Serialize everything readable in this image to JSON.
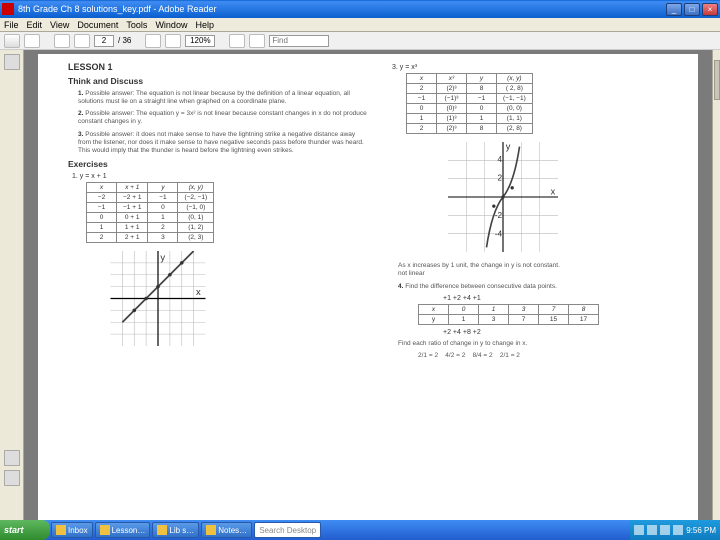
{
  "window": {
    "title": "8th Grade   Ch 8   solutions_key.pdf - Adobe Reader",
    "min": "_",
    "max": "□",
    "close": "×"
  },
  "menu": [
    "File",
    "Edit",
    "View",
    "Document",
    "Tools",
    "Window",
    "Help"
  ],
  "toolbar": {
    "page_current": "2",
    "page_total": "/ 36",
    "zoom": "120%",
    "find_placeholder": "Find"
  },
  "lesson": {
    "title": "LESSON 1",
    "think_discuss": "Think and Discuss",
    "td1": "Possible answer: The equation is not linear because by the definition of a linear equation, all solutions must lie on a straight line when graphed on a coordinate plane.",
    "td2": "Possible answer: The equation y = 3x² is not linear because constant changes in x do not produce constant changes in y.",
    "td3": "Possible answer: it does not make sense to have the lightning strike a negative distance away from the listener, nor does it make sense to have negative seconds pass before thunder was heard. This would imply that the thunder is heard before the lightning even strikes.",
    "exercises": "Exercises",
    "ex1_eq": "1.  y = x + 1",
    "table1": {
      "headers": [
        "x",
        "x + 1",
        "y",
        "(x, y)"
      ],
      "rows": [
        [
          "−2",
          "−2 + 1",
          "−1",
          "(−2, −1)"
        ],
        [
          "−1",
          "−1 + 1",
          "0",
          "(−1, 0)"
        ],
        [
          "0",
          "0 + 1",
          "1",
          "(0, 1)"
        ],
        [
          "1",
          "1 + 1",
          "2",
          "(1, 2)"
        ],
        [
          "2",
          "2 + 1",
          "3",
          "(2, 3)"
        ]
      ]
    },
    "ex3_eq": "3.  y = x³",
    "table3": {
      "headers": [
        "x",
        "x³",
        "y",
        "(x, y)"
      ],
      "rows": [
        [
          "2",
          "(2)³",
          "8",
          "( 2,  8)"
        ],
        [
          "−1",
          "(−1)³",
          "−1",
          "(−1, −1)"
        ],
        [
          "0",
          "(0)³",
          "0",
          "(0, 0)"
        ],
        [
          "1",
          "(1)³",
          "1",
          "(1, 1)"
        ],
        [
          "2",
          "(2)³",
          "8",
          "(2, 8)"
        ]
      ]
    },
    "note3": "As x increases by 1 unit, the change in y is not constant.\nnot linear",
    "ex4": "Find the difference between consecutive data points.",
    "table4_top": [
      "+1",
      "+2",
      "+4",
      "+1"
    ],
    "table4": {
      "headers": [
        "x",
        "0",
        "1",
        "3",
        "7",
        "8"
      ],
      "rows": [
        [
          "y",
          "1",
          "3",
          "7",
          "15",
          "17"
        ]
      ]
    },
    "table4_bot": [
      "+2",
      "+4",
      "+8",
      "+2"
    ],
    "ex4_ratio": "Find each ratio of change in y to change in x.",
    "ratios": "2/1 = 2    4/2 = 2    8/4 = 2    2/1 = 2",
    "graph1": {
      "type": "line",
      "xlim": [
        -3,
        3
      ],
      "ylim": [
        -1,
        4
      ],
      "points": [
        [
          -2,
          -1
        ],
        [
          -1,
          0
        ],
        [
          0,
          1
        ],
        [
          1,
          2
        ],
        [
          2,
          3
        ]
      ],
      "color": "#666"
    },
    "graph3": {
      "type": "curve",
      "xlim": [
        -6,
        6
      ],
      "ylim": [
        -5,
        5
      ],
      "points": [
        [
          -1.7,
          -5
        ],
        [
          -1,
          -1
        ],
        [
          0,
          0
        ],
        [
          1,
          1
        ],
        [
          1.7,
          5
        ]
      ],
      "color": "#666"
    }
  },
  "taskbar": {
    "start": "start",
    "tasks": [
      "Inbox",
      "Lesson…",
      "Lib s…",
      "Notes…"
    ],
    "search": "Search Desktop",
    "time": "9:56 PM"
  },
  "colors": {
    "titlebar": "#0a5fce",
    "taskbar": "#225dce",
    "start": "#2e8b2e",
    "page_bg": "#ffffff",
    "content_bg": "#7b7b7b",
    "text": "#555555"
  }
}
